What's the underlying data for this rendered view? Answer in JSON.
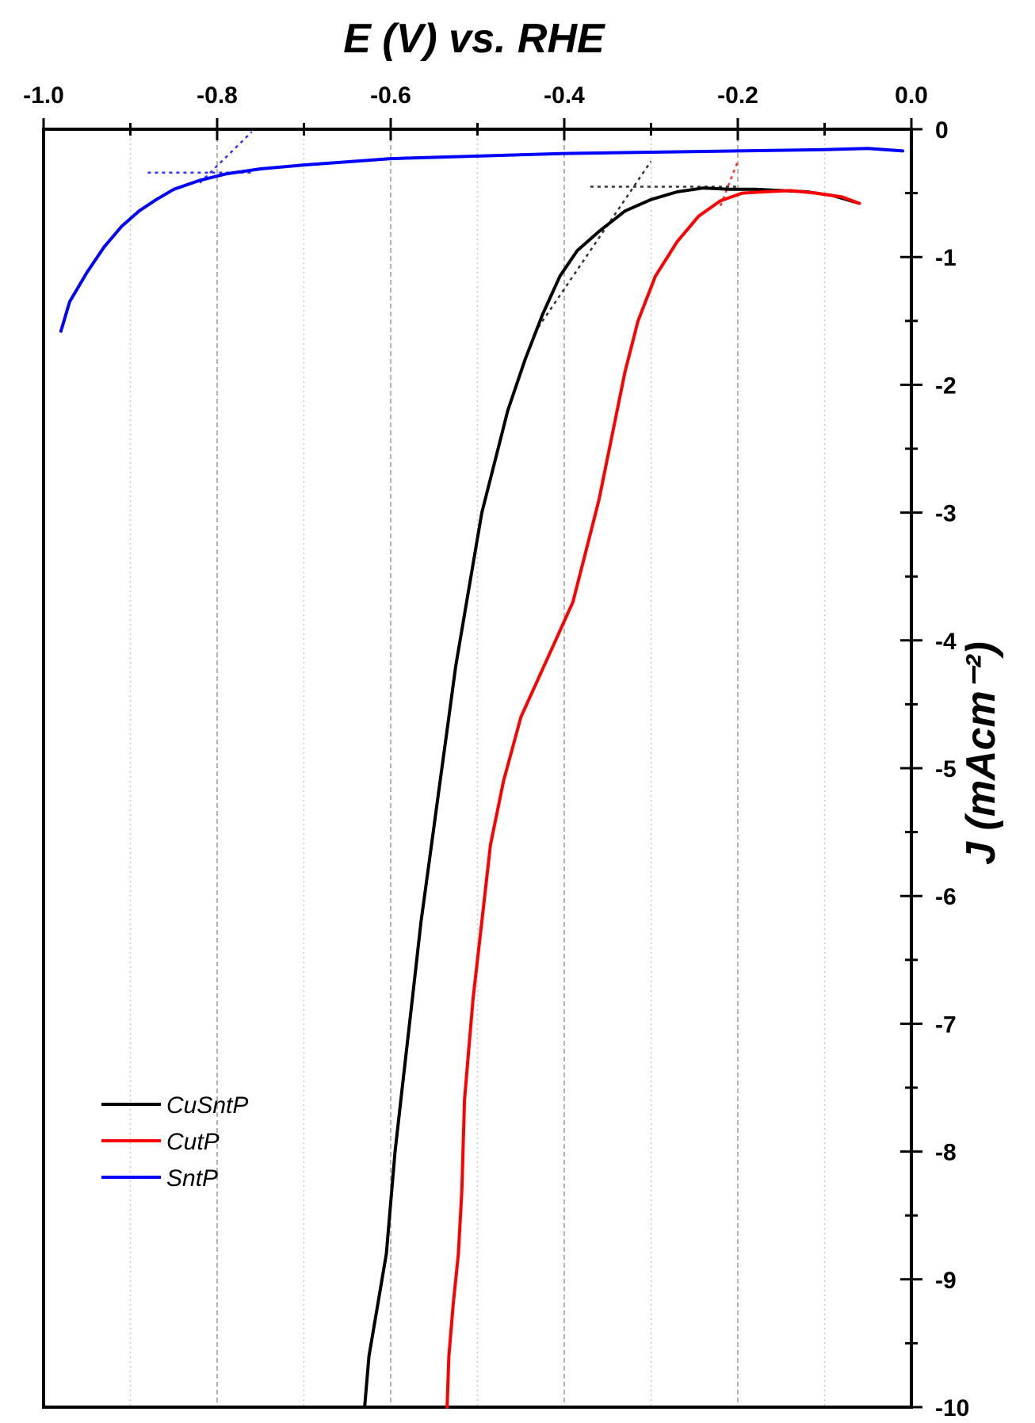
{
  "chart_data": {
    "type": "line",
    "title": "",
    "xlabel": "E (V) vs. RHE",
    "ylabel": "J (mAcm⁻²)",
    "xlim": [
      -1.0,
      0.0
    ],
    "ylim": [
      -10,
      0
    ],
    "x_axis_position": "top",
    "y_axis_position": "right",
    "x_tick_labels": [
      "-1.0",
      "-0.8",
      "-0.6",
      "-0.4",
      "-0.2",
      "0.0"
    ],
    "x_tick_values": [
      -1.0,
      -0.8,
      -0.6,
      -0.4,
      -0.2,
      0.0
    ],
    "y_tick_labels": [
      "0",
      "-1",
      "-2",
      "-3",
      "-4",
      "-5",
      "-6",
      "-7",
      "-8",
      "-9",
      "-10"
    ],
    "y_tick_values": [
      0,
      -1,
      -2,
      -3,
      -4,
      -5,
      -6,
      -7,
      -8,
      -9,
      -10
    ],
    "grid": {
      "vertical": true,
      "style": "dotted",
      "horizontal": false
    },
    "legend_position": "bottom-left",
    "series": [
      {
        "name": "CuSntP",
        "color": "#000000",
        "points": [
          [
            -0.63,
            -10.0
          ],
          [
            -0.625,
            -9.6
          ],
          [
            -0.615,
            -9.2
          ],
          [
            -0.605,
            -8.8
          ],
          [
            -0.595,
            -8.0
          ],
          [
            -0.585,
            -7.4
          ],
          [
            -0.575,
            -6.8
          ],
          [
            -0.565,
            -6.2
          ],
          [
            -0.555,
            -5.7
          ],
          [
            -0.545,
            -5.2
          ],
          [
            -0.535,
            -4.7
          ],
          [
            -0.525,
            -4.2
          ],
          [
            -0.51,
            -3.6
          ],
          [
            -0.495,
            -3.0
          ],
          [
            -0.48,
            -2.6
          ],
          [
            -0.465,
            -2.2
          ],
          [
            -0.445,
            -1.8
          ],
          [
            -0.425,
            -1.45
          ],
          [
            -0.405,
            -1.15
          ],
          [
            -0.385,
            -0.95
          ],
          [
            -0.36,
            -0.8
          ],
          [
            -0.33,
            -0.64
          ],
          [
            -0.3,
            -0.55
          ],
          [
            -0.27,
            -0.49
          ],
          [
            -0.24,
            -0.46
          ],
          [
            -0.21,
            -0.47
          ],
          [
            -0.18,
            -0.47
          ],
          [
            -0.15,
            -0.48
          ],
          [
            -0.12,
            -0.49
          ],
          [
            -0.09,
            -0.52
          ],
          [
            -0.06,
            -0.58
          ]
        ]
      },
      {
        "name": "CutP",
        "color": "#ff0000",
        "points": [
          [
            -0.535,
            -10.0
          ],
          [
            -0.533,
            -9.6
          ],
          [
            -0.528,
            -9.2
          ],
          [
            -0.522,
            -8.8
          ],
          [
            -0.518,
            -8.3
          ],
          [
            -0.515,
            -7.6
          ],
          [
            -0.51,
            -7.2
          ],
          [
            -0.505,
            -6.8
          ],
          [
            -0.495,
            -6.2
          ],
          [
            -0.485,
            -5.6
          ],
          [
            -0.47,
            -5.1
          ],
          [
            -0.45,
            -4.6
          ],
          [
            -0.43,
            -4.3
          ],
          [
            -0.41,
            -4.0
          ],
          [
            -0.39,
            -3.7
          ],
          [
            -0.375,
            -3.3
          ],
          [
            -0.36,
            -2.9
          ],
          [
            -0.345,
            -2.4
          ],
          [
            -0.33,
            -1.9
          ],
          [
            -0.315,
            -1.5
          ],
          [
            -0.295,
            -1.15
          ],
          [
            -0.27,
            -0.88
          ],
          [
            -0.245,
            -0.68
          ],
          [
            -0.22,
            -0.56
          ],
          [
            -0.195,
            -0.5
          ],
          [
            -0.17,
            -0.49
          ],
          [
            -0.14,
            -0.48
          ],
          [
            -0.11,
            -0.5
          ],
          [
            -0.08,
            -0.53
          ],
          [
            -0.06,
            -0.58
          ]
        ]
      },
      {
        "name": "SntP",
        "color": "#0000ff",
        "points": [
          [
            -0.98,
            -1.58
          ],
          [
            -0.97,
            -1.35
          ],
          [
            -0.95,
            -1.12
          ],
          [
            -0.93,
            -0.92
          ],
          [
            -0.91,
            -0.76
          ],
          [
            -0.89,
            -0.64
          ],
          [
            -0.87,
            -0.55
          ],
          [
            -0.85,
            -0.47
          ],
          [
            -0.82,
            -0.4
          ],
          [
            -0.79,
            -0.35
          ],
          [
            -0.75,
            -0.31
          ],
          [
            -0.7,
            -0.28
          ],
          [
            -0.6,
            -0.23
          ],
          [
            -0.5,
            -0.21
          ],
          [
            -0.4,
            -0.19
          ],
          [
            -0.3,
            -0.18
          ],
          [
            -0.2,
            -0.17
          ],
          [
            -0.1,
            -0.16
          ],
          [
            -0.05,
            -0.15
          ],
          [
            -0.01,
            -0.17
          ]
        ]
      }
    ],
    "annotations": [
      {
        "type": "tangent-dotted",
        "color": "#000000",
        "points": [
          [
            -0.37,
            -0.45
          ],
          [
            -0.2,
            -0.45
          ]
        ]
      },
      {
        "type": "tangent-dotted",
        "color": "#000000",
        "points": [
          [
            -0.43,
            -1.55
          ],
          [
            -0.3,
            -0.25
          ]
        ]
      },
      {
        "type": "tangent-dotted",
        "color": "#ff0000",
        "points": [
          [
            -0.22,
            -0.6
          ],
          [
            -0.2,
            -0.25
          ]
        ]
      },
      {
        "type": "tangent-dotted",
        "color": "#0000ff",
        "points": [
          [
            -0.88,
            -0.34
          ],
          [
            -0.76,
            -0.34
          ]
        ]
      },
      {
        "type": "tangent-dotted",
        "color": "#0000ff",
        "points": [
          [
            -0.82,
            -0.42
          ],
          [
            -0.76,
            -0.02
          ]
        ]
      }
    ]
  }
}
